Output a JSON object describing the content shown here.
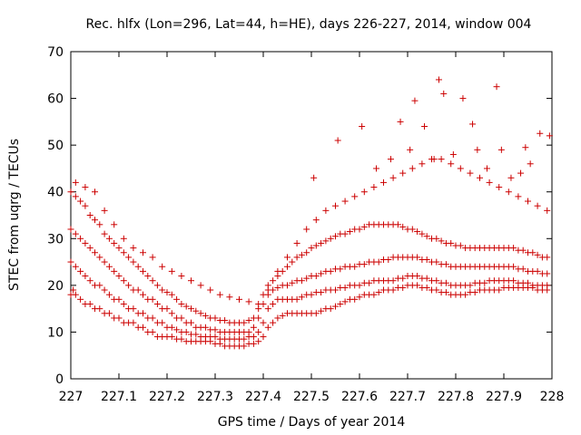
{
  "chart_data": {
    "type": "scatter",
    "title": "Rec. hlfx (Lon=296, Lat=44, h=HE), days 226-227, 2014, window 004",
    "xlabel": "GPS time / Days of year 2014",
    "ylabel": "STEC from uqrg / TECUs",
    "xlim": [
      227,
      228
    ],
    "ylim": [
      0,
      70
    ],
    "xticks": [
      227,
      227.1,
      227.2,
      227.3,
      227.4,
      227.5,
      227.6,
      227.7,
      227.8,
      227.9,
      228
    ],
    "xtick_labels": [
      "227",
      "227.1",
      "227.2",
      "227.3",
      "227.4",
      "227.5",
      "227.6",
      "227.7",
      "227.8",
      "227.9",
      "228"
    ],
    "yticks": [
      0,
      10,
      20,
      30,
      40,
      50,
      60,
      70
    ],
    "ytick_labels": [
      "0",
      "10",
      "20",
      "30",
      "40",
      "50",
      "60",
      "70"
    ],
    "grid": false,
    "marker": "plus",
    "color": "#cc0000",
    "series": [
      {
        "x": [
          227.0,
          227.005,
          227.01,
          227.02,
          227.03,
          227.04,
          227.05,
          227.06,
          227.07,
          227.08,
          227.09,
          227.1,
          227.11,
          227.12,
          227.13,
          227.14,
          227.15,
          227.16,
          227.17,
          227.18,
          227.19,
          227.2,
          227.21,
          227.22,
          227.23,
          227.24,
          227.25,
          227.26,
          227.27,
          227.28,
          227.29,
          227.3,
          227.31,
          227.32,
          227.33,
          227.34,
          227.35,
          227.36,
          227.37,
          227.38,
          227.39,
          227.4,
          227.41,
          227.42,
          227.43,
          227.44,
          227.45,
          227.46,
          227.47,
          227.48,
          227.49,
          227.5,
          227.51,
          227.52,
          227.53,
          227.54,
          227.55,
          227.56,
          227.57,
          227.58,
          227.59,
          227.6,
          227.61,
          227.62,
          227.63,
          227.64,
          227.65,
          227.66,
          227.67,
          227.68,
          227.69,
          227.7,
          227.71,
          227.72,
          227.73,
          227.74,
          227.75,
          227.76,
          227.77,
          227.78,
          227.79,
          227.8,
          227.81,
          227.82,
          227.83,
          227.84,
          227.85,
          227.86,
          227.87,
          227.88,
          227.89,
          227.9,
          227.91,
          227.92,
          227.93,
          227.94,
          227.95,
          227.96,
          227.97,
          227.98,
          227.99
        ],
        "y": [
          18,
          19,
          18,
          17,
          16,
          16,
          15,
          15,
          14,
          14,
          13,
          13,
          12,
          12,
          12,
          11,
          11,
          10,
          10,
          9,
          9,
          9,
          9,
          8.5,
          8.5,
          8,
          8,
          8,
          8,
          8,
          8,
          7.5,
          7.5,
          7,
          7,
          7,
          7,
          7,
          7.5,
          7.5,
          8,
          9,
          11,
          12,
          13,
          13.5,
          14,
          14,
          14,
          14,
          14,
          14,
          14,
          14.5,
          15,
          15,
          15.5,
          16,
          16.5,
          17,
          17,
          17.5,
          18,
          18,
          18,
          18.5,
          19,
          19,
          19,
          19.5,
          19.5,
          20,
          20,
          20,
          19.5,
          19.5,
          19,
          19,
          18.5,
          18.5,
          18,
          18,
          18,
          18,
          18.5,
          18.5,
          19,
          19,
          19,
          19,
          19,
          19.5,
          19.5,
          19.5,
          19.5,
          19.5,
          19.5,
          19.5,
          19,
          19,
          19
        ]
      },
      {
        "x": [
          227.0,
          227.01,
          227.02,
          227.03,
          227.04,
          227.05,
          227.06,
          227.07,
          227.08,
          227.09,
          227.1,
          227.11,
          227.12,
          227.13,
          227.14,
          227.15,
          227.16,
          227.17,
          227.18,
          227.19,
          227.2,
          227.21,
          227.22,
          227.23,
          227.24,
          227.25,
          227.26,
          227.27,
          227.28,
          227.29,
          227.3,
          227.31,
          227.32,
          227.33,
          227.34,
          227.35,
          227.36,
          227.37,
          227.38,
          227.39,
          227.4,
          227.41,
          227.42,
          227.43,
          227.44,
          227.45,
          227.46,
          227.47,
          227.48,
          227.49,
          227.5,
          227.51,
          227.52,
          227.53,
          227.54,
          227.55,
          227.56,
          227.57,
          227.58,
          227.59,
          227.6,
          227.61,
          227.62,
          227.63,
          227.64,
          227.65,
          227.66,
          227.67,
          227.68,
          227.69,
          227.7,
          227.71,
          227.72,
          227.73,
          227.74,
          227.75,
          227.76,
          227.77,
          227.78,
          227.79,
          227.8,
          227.81,
          227.82,
          227.83,
          227.84,
          227.85,
          227.86,
          227.87,
          227.88,
          227.89,
          227.9,
          227.91,
          227.92,
          227.93,
          227.94,
          227.95,
          227.96,
          227.97,
          227.98,
          227.99
        ],
        "y": [
          25,
          24,
          23,
          22,
          21,
          20,
          20,
          19,
          18,
          17,
          17,
          16,
          15,
          15,
          14,
          14,
          13,
          13,
          12,
          12,
          11,
          11,
          10.5,
          10,
          10,
          9.5,
          9.5,
          9,
          9,
          9,
          9,
          8.5,
          8.5,
          8.5,
          8.5,
          8.5,
          8.5,
          9,
          9,
          10,
          12,
          15,
          16,
          17,
          17,
          17,
          17,
          17,
          17.5,
          18,
          18,
          18.5,
          18.5,
          19,
          19,
          19,
          19.5,
          19.5,
          20,
          20,
          20,
          20.5,
          20.5,
          21,
          21,
          21,
          21,
          21,
          21.5,
          21.5,
          22,
          22,
          22,
          21.5,
          21.5,
          21,
          21,
          20.5,
          20.5,
          20,
          20,
          20,
          20,
          20,
          20.5,
          20.5,
          20.5,
          21,
          21,
          21,
          21,
          21,
          21,
          20.5,
          20.5,
          20.5,
          20,
          20,
          20,
          20
        ]
      },
      {
        "x": [
          227.0,
          227.01,
          227.02,
          227.03,
          227.04,
          227.05,
          227.06,
          227.07,
          227.08,
          227.09,
          227.1,
          227.11,
          227.12,
          227.13,
          227.14,
          227.15,
          227.16,
          227.17,
          227.18,
          227.19,
          227.2,
          227.21,
          227.22,
          227.23,
          227.24,
          227.25,
          227.26,
          227.27,
          227.28,
          227.29,
          227.3,
          227.31,
          227.32,
          227.33,
          227.34,
          227.35,
          227.36,
          227.37,
          227.38,
          227.39,
          227.4,
          227.41,
          227.42,
          227.43,
          227.44,
          227.45,
          227.46,
          227.47,
          227.48,
          227.49,
          227.5,
          227.51,
          227.52,
          227.53,
          227.54,
          227.55,
          227.56,
          227.57,
          227.58,
          227.59,
          227.6,
          227.61,
          227.62,
          227.63,
          227.64,
          227.65,
          227.66,
          227.67,
          227.68,
          227.69,
          227.7,
          227.71,
          227.72,
          227.73,
          227.74,
          227.75,
          227.76,
          227.77,
          227.78,
          227.79,
          227.8,
          227.81,
          227.82,
          227.83,
          227.84,
          227.85,
          227.86,
          227.87,
          227.88,
          227.89,
          227.9,
          227.91,
          227.92,
          227.93,
          227.94,
          227.95,
          227.96,
          227.97,
          227.98,
          227.99
        ],
        "y": [
          32,
          31,
          30,
          29,
          28,
          27,
          26,
          25,
          24,
          23,
          22,
          21,
          20,
          19,
          19,
          18,
          17,
          17,
          16,
          15,
          15,
          14,
          13,
          13,
          12,
          12,
          11,
          11,
          11,
          10.5,
          10.5,
          10,
          10,
          10,
          10,
          10,
          10,
          10,
          11,
          13,
          16,
          18,
          19,
          19.5,
          20,
          20,
          20.5,
          21,
          21,
          21.5,
          22,
          22,
          22.5,
          23,
          23,
          23.5,
          23.5,
          24,
          24,
          24,
          24.5,
          24.5,
          25,
          25,
          25,
          25.5,
          25.5,
          26,
          26,
          26,
          26,
          26,
          26,
          25.5,
          25.5,
          25,
          25,
          24.5,
          24.5,
          24,
          24,
          24,
          24,
          24,
          24,
          24,
          24,
          24,
          24,
          24,
          24,
          24,
          24,
          23.5,
          23.5,
          23,
          23,
          23,
          22.5,
          22.5
        ]
      },
      {
        "x": [
          227.0,
          227.01,
          227.02,
          227.03,
          227.04,
          227.05,
          227.06,
          227.07,
          227.08,
          227.09,
          227.1,
          227.11,
          227.12,
          227.13,
          227.14,
          227.15,
          227.16,
          227.17,
          227.18,
          227.19,
          227.2,
          227.21,
          227.22,
          227.23,
          227.24,
          227.25,
          227.26,
          227.27,
          227.28,
          227.29,
          227.3,
          227.31,
          227.32,
          227.33,
          227.34,
          227.35,
          227.36,
          227.37,
          227.38,
          227.39,
          227.4,
          227.41,
          227.42,
          227.43,
          227.44,
          227.45,
          227.46,
          227.47,
          227.48,
          227.49,
          227.5,
          227.51,
          227.52,
          227.53,
          227.54,
          227.55,
          227.56,
          227.57,
          227.58,
          227.59,
          227.6,
          227.61,
          227.62,
          227.63,
          227.64,
          227.65,
          227.66,
          227.67,
          227.68,
          227.69,
          227.7,
          227.71,
          227.72,
          227.73,
          227.74,
          227.75,
          227.76,
          227.77,
          227.78,
          227.79,
          227.8,
          227.81,
          227.82,
          227.83,
          227.84,
          227.85,
          227.86,
          227.87,
          227.88,
          227.89,
          227.9,
          227.91,
          227.92,
          227.93,
          227.94,
          227.95,
          227.96,
          227.97,
          227.98,
          227.99
        ],
        "y": [
          40,
          39,
          38,
          37,
          35,
          34,
          33,
          31,
          30,
          29,
          28,
          27,
          26,
          25,
          24,
          23,
          22,
          21,
          20,
          19,
          18.5,
          18,
          17,
          16,
          15.5,
          15,
          14.5,
          14,
          13.5,
          13,
          13,
          12.5,
          12.5,
          12,
          12,
          12,
          12,
          12.5,
          13,
          15,
          18,
          20,
          21,
          22,
          23,
          24,
          25,
          26,
          26.5,
          27,
          28,
          28.5,
          29,
          29.5,
          30,
          30.5,
          31,
          31,
          31.5,
          32,
          32,
          32.5,
          33,
          33,
          33,
          33,
          33,
          33,
          33,
          32.5,
          32,
          32,
          31.5,
          31,
          30.5,
          30,
          30,
          29.5,
          29,
          29,
          28.5,
          28.5,
          28,
          28,
          28,
          28,
          28,
          28,
          28,
          28,
          28,
          28,
          28,
          27.5,
          27.5,
          27,
          27,
          26.5,
          26,
          26
        ]
      },
      {
        "x": [
          227.01,
          227.03,
          227.05,
          227.07,
          227.09,
          227.11,
          227.13,
          227.15,
          227.17,
          227.19,
          227.21,
          227.23,
          227.25,
          227.27,
          227.29,
          227.31,
          227.33,
          227.35,
          227.37,
          227.39,
          227.41,
          227.43,
          227.45,
          227.47,
          227.49,
          227.51,
          227.53,
          227.55,
          227.57,
          227.59,
          227.61,
          227.63,
          227.65,
          227.67,
          227.69,
          227.71,
          227.73,
          227.75,
          227.77,
          227.79,
          227.81,
          227.83,
          227.85,
          227.87,
          227.89,
          227.91,
          227.93,
          227.95,
          227.97,
          227.99
        ],
        "y": [
          42,
          41,
          40,
          36,
          33,
          30,
          28,
          27,
          26,
          24,
          23,
          22,
          21,
          20,
          19,
          18,
          17.5,
          17,
          16.5,
          16,
          19,
          23,
          26,
          29,
          32,
          34,
          36,
          37,
          38,
          39,
          40,
          41,
          42,
          43,
          44,
          45,
          46,
          47,
          47,
          46,
          45,
          44,
          43,
          42,
          41,
          40,
          39,
          38,
          37,
          36
        ]
      },
      {
        "x": [
          227.505,
          227.555,
          227.605,
          227.635,
          227.665,
          227.685,
          227.705,
          227.715,
          227.735,
          227.755,
          227.765,
          227.775,
          227.795,
          227.815,
          227.835,
          227.845,
          227.865,
          227.885,
          227.895,
          227.915,
          227.935,
          227.945,
          227.955,
          227.975,
          227.995
        ],
        "y": [
          43,
          51,
          54,
          45,
          47,
          55,
          49,
          59.5,
          54,
          47,
          64,
          61,
          48,
          60,
          54.5,
          49,
          45,
          62.5,
          49,
          43,
          44,
          49.5,
          46,
          52.5,
          52
        ]
      }
    ]
  }
}
